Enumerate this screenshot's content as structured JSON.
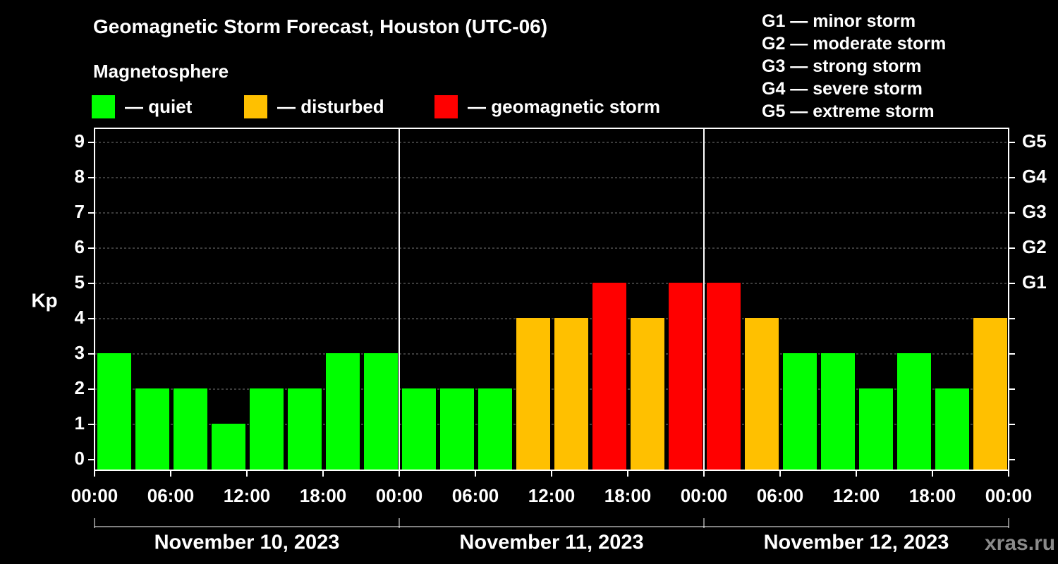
{
  "chart_data": {
    "type": "bar",
    "title": "Geomagnetic Storm Forecast, Houston (UTC-06)",
    "subtitle": "Magnetosphere",
    "ylabel": "Kp",
    "ylim": [
      0,
      9
    ],
    "y_ticks": [
      "0",
      "1",
      "2",
      "3",
      "4",
      "5",
      "6",
      "7",
      "8",
      "9"
    ],
    "right_axis_labels": [
      {
        "kp": 5,
        "label": "G1"
      },
      {
        "kp": 6,
        "label": "G2"
      },
      {
        "kp": 7,
        "label": "G3"
      },
      {
        "kp": 8,
        "label": "G4"
      },
      {
        "kp": 9,
        "label": "G5"
      }
    ],
    "x_tick_labels": [
      "00:00",
      "06:00",
      "12:00",
      "18:00",
      "00:00",
      "06:00",
      "12:00",
      "18:00",
      "00:00",
      "06:00",
      "12:00",
      "18:00",
      "00:00"
    ],
    "days": [
      "November 10, 2023",
      "November 11, 2023",
      "November 12, 2023"
    ],
    "values": [
      3,
      2,
      2,
      1,
      2,
      2,
      3,
      3,
      2,
      2,
      2,
      4,
      4,
      5,
      4,
      5,
      5,
      4,
      3,
      3,
      2,
      3,
      2,
      4
    ],
    "legend": [
      {
        "label": "— quiet",
        "color": "#00ff00"
      },
      {
        "label": "— disturbed",
        "color": "#ffc000"
      },
      {
        "label": "— geomagnetic storm",
        "color": "#ff0000"
      }
    ],
    "storm_levels": [
      "G1 — minor storm",
      "G2 — moderate storm",
      "G3 — strong storm",
      "G4 — severe storm",
      "G5 — extreme storm"
    ],
    "grid": true
  },
  "watermark": "xras.ru"
}
